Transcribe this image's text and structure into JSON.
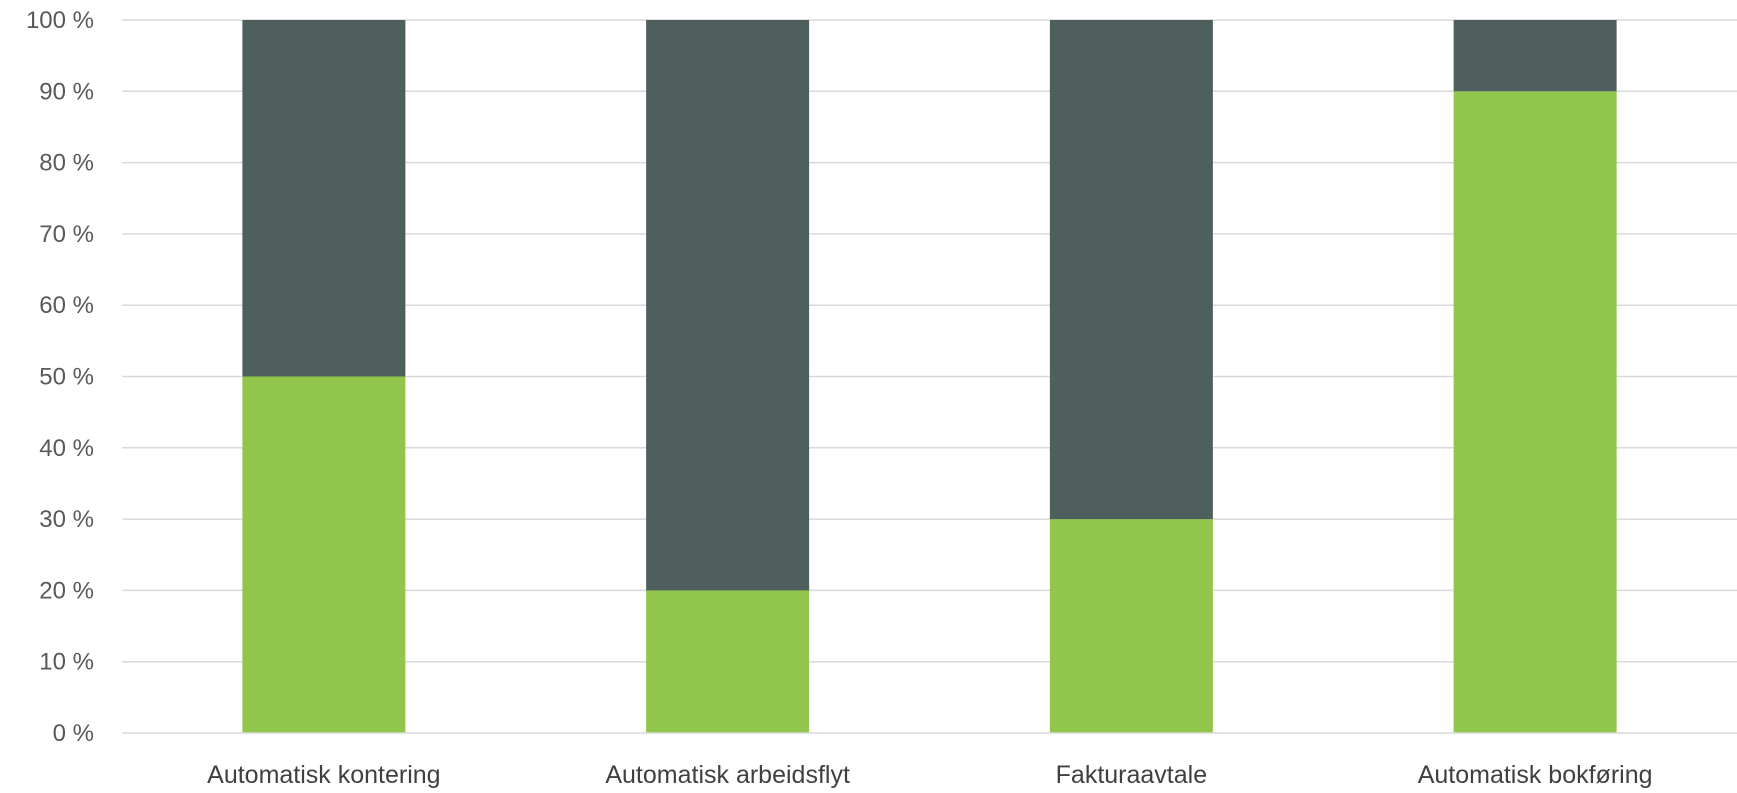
{
  "chart_data": {
    "type": "bar",
    "stacked": true,
    "percent_stacked": true,
    "categories": [
      "Automatisk kontering",
      "Automatisk arbeidsflyt",
      "Fakturaavtale",
      "Automatisk bokføring"
    ],
    "series": [
      {
        "values": [
          50,
          20,
          30,
          90
        ],
        "color": "#92c54b"
      },
      {
        "values": [
          50,
          80,
          70,
          10
        ],
        "color": "#4e5f5e"
      }
    ],
    "ylim": [
      0,
      100
    ],
    "y_ticks": [
      0,
      10,
      20,
      30,
      40,
      50,
      60,
      70,
      80,
      90,
      100
    ],
    "y_tick_labels": [
      "0 %",
      "10 %",
      "20 %",
      "30 %",
      "40 %",
      "50 %",
      "60 %",
      "70 %",
      "80 %",
      "90 %",
      "100 %"
    ],
    "grid": true,
    "legend": "none",
    "title": "",
    "xlabel": "",
    "ylabel": ""
  }
}
